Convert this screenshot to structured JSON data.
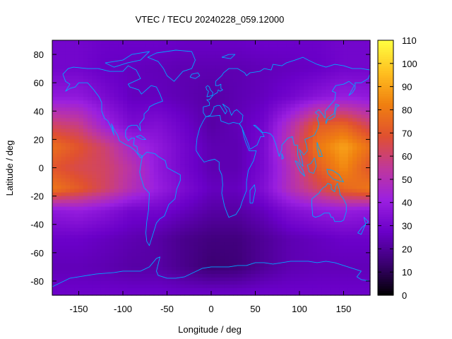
{
  "chart_data": {
    "type": "heatmap",
    "title": "VTEC / TECU 20240228_059.12000",
    "xlabel": "Longitude / deg",
    "ylabel": "Latitude / deg",
    "xlim": [
      -180,
      180
    ],
    "ylim": [
      -90,
      90
    ],
    "x_ticks": [
      -150,
      -100,
      -50,
      0,
      50,
      100,
      150
    ],
    "y_ticks": [
      -80,
      -60,
      -40,
      -20,
      0,
      20,
      40,
      60,
      80
    ],
    "colorbar": {
      "range": [
        0,
        110
      ],
      "ticks": [
        0,
        10,
        20,
        30,
        40,
        50,
        60,
        70,
        80,
        90,
        100,
        110
      ],
      "palette": [
        "#000000",
        "#3a0070",
        "#6a00c8",
        "#9b20e0",
        "#c0389a",
        "#e05030",
        "#f08010",
        "#ffc020",
        "#ffff40"
      ]
    },
    "field": {
      "description": "VTEC values in TECU sampled on a coarse grid (lat rows top to bottom, lon columns left to right)",
      "lon": [
        -180,
        -150,
        -120,
        -90,
        -60,
        -30,
        0,
        30,
        60,
        90,
        120,
        150,
        180
      ],
      "lat": [
        87.5,
        70,
        50,
        30,
        15,
        0,
        -15,
        -30,
        -50,
        -70,
        -87.5
      ],
      "values": [
        [
          30,
          30,
          28,
          28,
          28,
          27,
          27,
          27,
          28,
          28,
          28,
          30,
          30
        ],
        [
          30,
          30,
          27,
          26,
          25,
          24,
          24,
          24,
          25,
          26,
          27,
          30,
          30
        ],
        [
          38,
          38,
          32,
          26,
          26,
          24,
          22,
          24,
          26,
          30,
          36,
          40,
          38
        ],
        [
          62,
          58,
          42,
          32,
          34,
          28,
          22,
          25,
          30,
          50,
          72,
          75,
          62
        ],
        [
          78,
          70,
          60,
          45,
          38,
          30,
          24,
          24,
          32,
          55,
          80,
          90,
          78
        ],
        [
          70,
          65,
          62,
          52,
          38,
          30,
          24,
          24,
          32,
          50,
          72,
          85,
          70
        ],
        [
          80,
          72,
          62,
          50,
          40,
          32,
          26,
          26,
          34,
          50,
          62,
          75,
          80
        ],
        [
          38,
          40,
          36,
          30,
          30,
          26,
          22,
          22,
          26,
          34,
          38,
          40,
          38
        ],
        [
          28,
          28,
          26,
          24,
          22,
          18,
          16,
          16,
          20,
          24,
          26,
          28,
          28
        ],
        [
          25,
          25,
          24,
          22,
          22,
          18,
          14,
          15,
          20,
          24,
          25,
          25,
          25
        ],
        [
          28,
          28,
          28,
          28,
          28,
          27,
          27,
          27,
          28,
          28,
          28,
          28,
          28
        ]
      ]
    },
    "overlay": "continent coastlines"
  },
  "colors": {
    "coastline": "#00a8ff",
    "background": "#ffffff",
    "axis": "#000000"
  }
}
